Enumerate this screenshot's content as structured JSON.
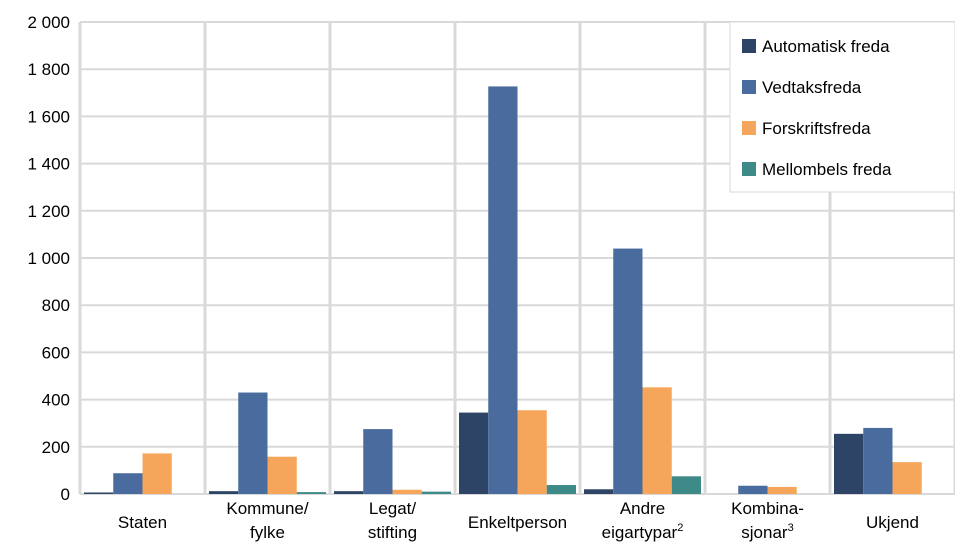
{
  "chart_data": {
    "type": "bar",
    "categories": [
      {
        "lines": [
          "Staten"
        ]
      },
      {
        "lines": [
          "Kommune/",
          "fylke"
        ]
      },
      {
        "lines": [
          "Legat/",
          "stifting"
        ]
      },
      {
        "lines": [
          "Enkeltperson"
        ]
      },
      {
        "lines": [
          "Andre",
          "eigartypar"
        ],
        "sup": "2"
      },
      {
        "lines": [
          "Kombina-",
          "sjonar"
        ],
        "sup": "3"
      },
      {
        "lines": [
          "Ukjend"
        ]
      }
    ],
    "series": [
      {
        "name": "Automatisk freda",
        "color": "#2e4466",
        "values": [
          5,
          12,
          12,
          345,
          20,
          0,
          255
        ]
      },
      {
        "name": "Vedtaksfreda",
        "color": "#4a6b9e",
        "values": [
          88,
          430,
          275,
          1727,
          1040,
          35,
          280
        ]
      },
      {
        "name": "Forskriftsfreda",
        "color": "#f6a65b",
        "values": [
          172,
          158,
          18,
          355,
          452,
          30,
          135
        ]
      },
      {
        "name": "Mellombels freda",
        "color": "#3e8a88",
        "values": [
          0,
          8,
          10,
          38,
          75,
          0,
          0
        ]
      }
    ],
    "yticks": [
      "0",
      "200",
      "400",
      "600",
      "800",
      "1 000",
      "1 200",
      "1 400",
      "1 600",
      "1 800",
      "2 000"
    ],
    "ylim": [
      0,
      2000
    ],
    "grid": true,
    "legend": "top-right",
    "title": "",
    "xlabel": "",
    "ylabel": ""
  }
}
